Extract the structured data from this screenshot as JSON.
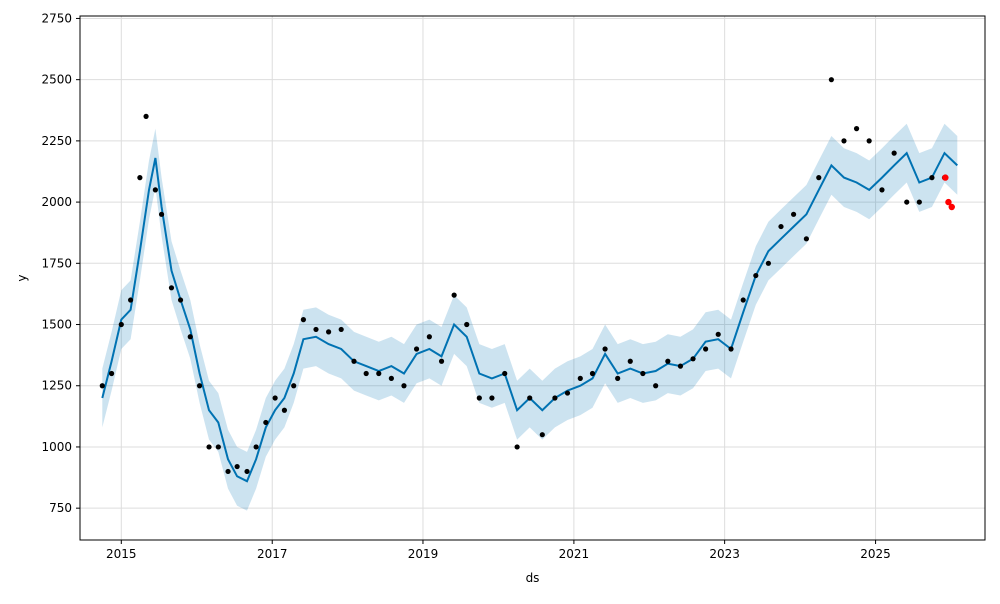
{
  "chart_data": {
    "type": "line",
    "title": "",
    "xlabel": "ds",
    "ylabel": "y",
    "xlim": [
      "2014-06-15",
      "2026-06-15"
    ],
    "ylim": [
      620,
      2760
    ],
    "grid": true,
    "legend": "none",
    "x_ticks": [
      {
        "value": "2015-01-01",
        "label": "2015"
      },
      {
        "value": "2017-01-01",
        "label": "2017"
      },
      {
        "value": "2019-01-01",
        "label": "2019"
      },
      {
        "value": "2021-01-01",
        "label": "2021"
      },
      {
        "value": "2023-01-01",
        "label": "2023"
      },
      {
        "value": "2025-01-01",
        "label": "2025"
      }
    ],
    "y_ticks": [
      {
        "value": 750,
        "label": "750"
      },
      {
        "value": 1000,
        "label": "1000"
      },
      {
        "value": 1250,
        "label": "1250"
      },
      {
        "value": 1500,
        "label": "1500"
      },
      {
        "value": 1750,
        "label": "1750"
      },
      {
        "value": 2000,
        "label": "2000"
      },
      {
        "value": 2250,
        "label": "2250"
      },
      {
        "value": 2500,
        "label": "2500"
      },
      {
        "value": 2750,
        "label": "2750"
      }
    ],
    "colors": {
      "forecast_line": "#0072B2",
      "interval_fill": "#0072B2",
      "observed_points": "#000000",
      "highlight_points": "#ff0000",
      "grid": "#dddddd"
    },
    "forecast": {
      "x": [
        "2014-10-01",
        "2014-11-15",
        "2015-01-01",
        "2015-02-15",
        "2015-04-01",
        "2015-05-15",
        "2015-06-15",
        "2015-07-15",
        "2015-09-01",
        "2015-10-15",
        "2015-12-01",
        "2016-01-15",
        "2016-03-01",
        "2016-04-15",
        "2016-06-01",
        "2016-07-15",
        "2016-09-01",
        "2016-10-15",
        "2016-12-01",
        "2017-01-15",
        "2017-03-01",
        "2017-04-15",
        "2017-06-01",
        "2017-08-01",
        "2017-10-01",
        "2017-12-01",
        "2018-02-01",
        "2018-04-01",
        "2018-06-01",
        "2018-08-01",
        "2018-10-01",
        "2018-12-01",
        "2019-02-01",
        "2019-04-01",
        "2019-06-01",
        "2019-08-01",
        "2019-10-01",
        "2019-12-01",
        "2020-02-01",
        "2020-04-01",
        "2020-06-01",
        "2020-08-01",
        "2020-10-01",
        "2020-12-01",
        "2021-02-01",
        "2021-04-01",
        "2021-06-01",
        "2021-08-01",
        "2021-10-01",
        "2021-12-01",
        "2022-02-01",
        "2022-04-01",
        "2022-06-01",
        "2022-08-01",
        "2022-10-01",
        "2022-12-01",
        "2023-02-01",
        "2023-04-01",
        "2023-06-01",
        "2023-08-01",
        "2023-10-01",
        "2023-12-01",
        "2024-02-01",
        "2024-04-01",
        "2024-06-01",
        "2024-08-01",
        "2024-10-01",
        "2024-12-01",
        "2025-02-01",
        "2025-04-01",
        "2025-06-01",
        "2025-08-01",
        "2025-10-01",
        "2025-12-01",
        "2026-02-01"
      ],
      "yhat": [
        1200,
        1350,
        1520,
        1560,
        1800,
        2050,
        2180,
        1980,
        1720,
        1600,
        1480,
        1300,
        1150,
        1100,
        950,
        880,
        860,
        950,
        1080,
        1150,
        1200,
        1300,
        1440,
        1450,
        1420,
        1400,
        1350,
        1330,
        1310,
        1330,
        1300,
        1380,
        1400,
        1370,
        1500,
        1450,
        1300,
        1280,
        1300,
        1150,
        1200,
        1150,
        1200,
        1230,
        1250,
        1280,
        1380,
        1300,
        1320,
        1300,
        1310,
        1340,
        1330,
        1360,
        1430,
        1440,
        1400,
        1550,
        1700,
        1800,
        1850,
        1900,
        1950,
        2050,
        2150,
        2100,
        2080,
        2050,
        2100,
        2150,
        2200,
        2080,
        2100,
        2200,
        2150
      ],
      "lower": [
        1080,
        1230,
        1400,
        1440,
        1680,
        1930,
        2060,
        1860,
        1600,
        1480,
        1360,
        1180,
        1030,
        980,
        830,
        760,
        740,
        830,
        960,
        1030,
        1080,
        1180,
        1320,
        1330,
        1300,
        1280,
        1230,
        1210,
        1190,
        1210,
        1180,
        1260,
        1280,
        1250,
        1380,
        1330,
        1180,
        1160,
        1180,
        1030,
        1080,
        1030,
        1080,
        1110,
        1130,
        1160,
        1260,
        1180,
        1200,
        1180,
        1190,
        1220,
        1210,
        1240,
        1310,
        1320,
        1280,
        1430,
        1580,
        1680,
        1730,
        1780,
        1830,
        1930,
        2030,
        1980,
        1960,
        1930,
        1980,
        2030,
        2080,
        1960,
        1980,
        2080,
        2030
      ],
      "upper": [
        1320,
        1470,
        1640,
        1680,
        1920,
        2170,
        2300,
        2100,
        1840,
        1720,
        1600,
        1420,
        1270,
        1220,
        1070,
        1000,
        980,
        1070,
        1200,
        1270,
        1320,
        1420,
        1560,
        1570,
        1540,
        1520,
        1470,
        1450,
        1430,
        1450,
        1420,
        1500,
        1520,
        1490,
        1620,
        1570,
        1420,
        1400,
        1420,
        1270,
        1320,
        1270,
        1320,
        1350,
        1370,
        1400,
        1500,
        1420,
        1440,
        1420,
        1430,
        1460,
        1450,
        1480,
        1550,
        1560,
        1520,
        1670,
        1820,
        1920,
        1970,
        2020,
        2070,
        2170,
        2270,
        2220,
        2200,
        2170,
        2220,
        2270,
        2320,
        2200,
        2220,
        2320,
        2270
      ]
    },
    "observed": {
      "x": [
        "2014-10-01",
        "2014-11-15",
        "2015-01-01",
        "2015-02-15",
        "2015-04-01",
        "2015-05-01",
        "2015-06-15",
        "2015-07-15",
        "2015-09-01",
        "2015-10-15",
        "2015-12-01",
        "2016-01-15",
        "2016-03-01",
        "2016-04-15",
        "2016-06-01",
        "2016-07-15",
        "2016-09-01",
        "2016-10-15",
        "2016-12-01",
        "2017-01-15",
        "2017-03-01",
        "2017-04-15",
        "2017-06-01",
        "2017-08-01",
        "2017-10-01",
        "2017-12-01",
        "2018-02-01",
        "2018-04-01",
        "2018-06-01",
        "2018-08-01",
        "2018-10-01",
        "2018-12-01",
        "2019-02-01",
        "2019-04-01",
        "2019-06-01",
        "2019-08-01",
        "2019-10-01",
        "2019-12-01",
        "2020-02-01",
        "2020-04-01",
        "2020-06-01",
        "2020-08-01",
        "2020-10-01",
        "2020-12-01",
        "2021-02-01",
        "2021-04-01",
        "2021-06-01",
        "2021-08-01",
        "2021-10-01",
        "2021-12-01",
        "2022-02-01",
        "2022-04-01",
        "2022-06-01",
        "2022-08-01",
        "2022-10-01",
        "2022-12-01",
        "2023-02-01",
        "2023-04-01",
        "2023-06-01",
        "2023-08-01",
        "2023-10-01",
        "2023-12-01",
        "2024-02-01",
        "2024-04-01",
        "2024-06-01",
        "2024-08-01",
        "2024-10-01",
        "2024-12-01",
        "2025-02-01",
        "2025-04-01",
        "2025-06-01",
        "2025-08-01",
        "2025-10-01",
        "2025-12-01"
      ],
      "y": [
        1250,
        1300,
        1500,
        1600,
        2100,
        2350,
        2050,
        1950,
        1650,
        1600,
        1450,
        1250,
        1000,
        1000,
        900,
        920,
        900,
        1000,
        1100,
        1200,
        1150,
        1250,
        1520,
        1480,
        1470,
        1480,
        1350,
        1300,
        1300,
        1280,
        1250,
        1400,
        1450,
        1350,
        1620,
        1500,
        1200,
        1200,
        1300,
        1000,
        1200,
        1050,
        1200,
        1220,
        1280,
        1300,
        1400,
        1280,
        1350,
        1300,
        1250,
        1350,
        1330,
        1360,
        1400,
        1460,
        1400,
        1600,
        1700,
        1750,
        1900,
        1950,
        1850,
        2100,
        2500,
        2250,
        2300,
        2250,
        2050,
        2200,
        2000,
        2000,
        2100,
        2100
      ]
    },
    "highlight": {
      "x": [
        "2025-12-05",
        "2025-12-20",
        "2026-01-05"
      ],
      "y": [
        2100,
        2000,
        1980
      ]
    }
  }
}
